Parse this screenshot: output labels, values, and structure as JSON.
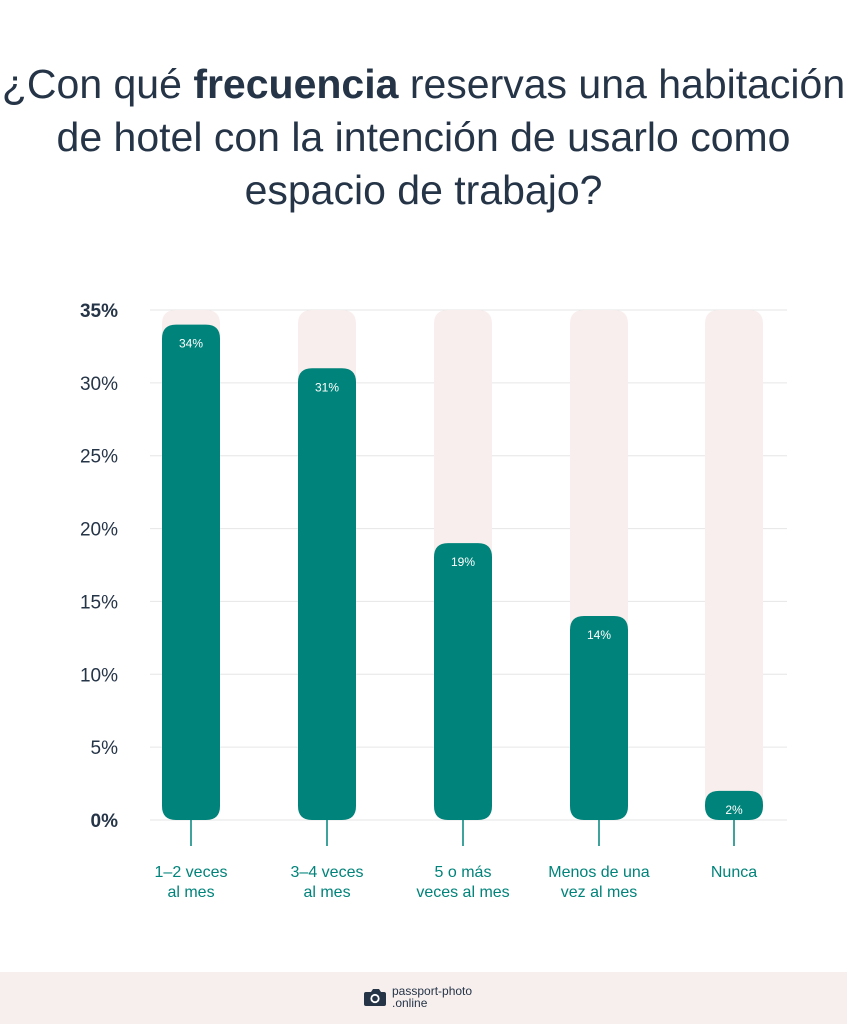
{
  "title": {
    "before": "¿Con qué ",
    "bold": "frecuencia",
    "after": " reservas una habitación de hotel con la intención de usarlo como espacio de trabajo?"
  },
  "chart_data": {
    "type": "bar",
    "categories": [
      [
        "1–2 veces",
        "al mes"
      ],
      [
        "3–4 veces",
        "al mes"
      ],
      [
        "5 o más",
        "veces al mes"
      ],
      [
        "Menos de una",
        "vez al mes"
      ],
      [
        "Nunca"
      ]
    ],
    "values": [
      34,
      31,
      19,
      14,
      2
    ],
    "value_labels": [
      "34%",
      "31%",
      "19%",
      "14%",
      "2%"
    ],
    "ylim": [
      0,
      35
    ],
    "yticks": [
      {
        "value": 0,
        "label": "0%"
      },
      {
        "value": 5,
        "label": "5%"
      },
      {
        "value": 10,
        "label": "10%"
      },
      {
        "value": 15,
        "label": "15%"
      },
      {
        "value": 20,
        "label": "20%"
      },
      {
        "value": 25,
        "label": "25%"
      },
      {
        "value": 30,
        "label": "30%"
      },
      {
        "value": 35,
        "label": "35%"
      }
    ],
    "bold_ticks": [
      0,
      35
    ],
    "grid": true,
    "colors": {
      "bar": "#00837a",
      "track": "#f7eeed",
      "category_text": "#00837a",
      "axis_text": "#253447",
      "grid": "#e6e6e6"
    }
  },
  "footer": {
    "brand_line1": "passport-photo",
    "brand_line2": ".online",
    "icon": "camera-icon"
  }
}
